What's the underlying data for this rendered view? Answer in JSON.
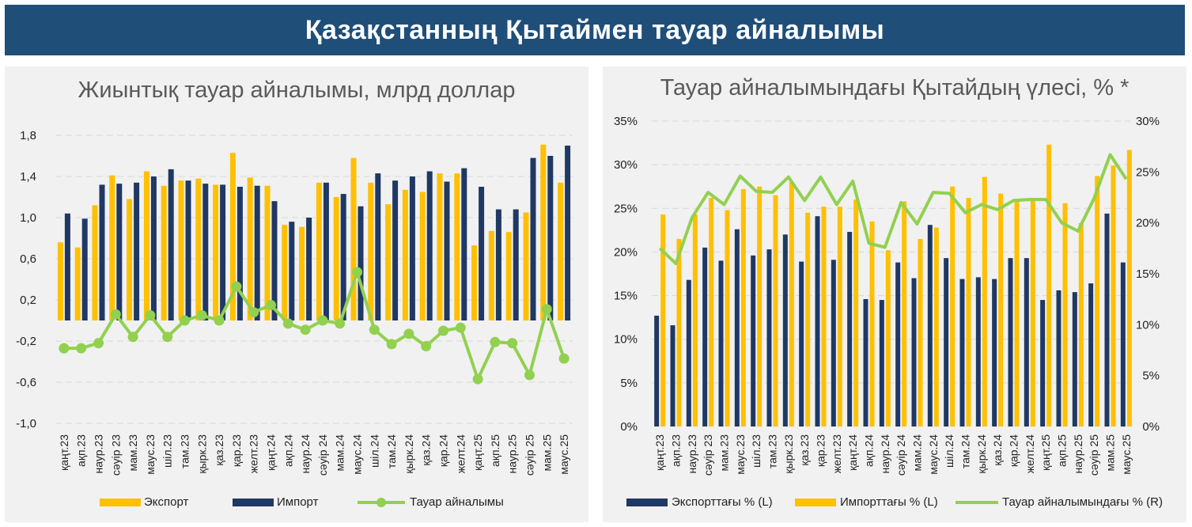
{
  "header": {
    "title": "Қазақстанның Қытаймен тауар айналымы"
  },
  "colors": {
    "banner": "#1f4e79",
    "export": "#ffc000",
    "import": "#1f3864",
    "turnover": "#92d050",
    "panel_bg": "#f1f1f1",
    "grid": "#d9d9d9"
  },
  "chart_data": [
    {
      "type": "bar",
      "title": "Жиынтық тауар айналымы, млрд доллар",
      "categories": [
        "қаңт.23",
        "ақп.23",
        "наур.23",
        "сәуір 23",
        "мам.23",
        "мауc.23",
        "шіл.23",
        "там.23",
        "қырк.23",
        "қаз.23",
        "қар.23",
        "желт.23",
        "қаңт.24",
        "ақп.24",
        "наур.24",
        "сәуір 24",
        "мам.24",
        "мауc.24",
        "шіл.24",
        "там.24",
        "қырк.24",
        "қаз.24",
        "қар.24",
        "желт.24",
        "қаңт.25",
        "ақп.25",
        "наур.25",
        "сәуір 25",
        "мам.25",
        "мауc.25"
      ],
      "series": [
        {
          "name": "Экспорт",
          "kind": "bar",
          "values": [
            0.76,
            0.71,
            1.12,
            1.41,
            1.18,
            1.45,
            1.31,
            1.36,
            1.38,
            1.32,
            1.63,
            1.39,
            1.31,
            0.93,
            0.91,
            1.34,
            1.2,
            1.58,
            1.34,
            1.13,
            1.27,
            1.25,
            1.43,
            1.43,
            0.73,
            0.87,
            0.86,
            1.05,
            1.71,
            1.34
          ]
        },
        {
          "name": "Импорт",
          "kind": "bar",
          "values": [
            1.04,
            0.99,
            1.32,
            1.33,
            1.34,
            1.4,
            1.47,
            1.36,
            1.33,
            1.32,
            1.3,
            1.31,
            1.16,
            0.96,
            1.0,
            1.34,
            1.23,
            1.11,
            1.43,
            1.36,
            1.4,
            1.45,
            1.35,
            1.48,
            1.3,
            1.08,
            1.08,
            1.58,
            1.6,
            1.7
          ]
        },
        {
          "name": "Тауар айналымы",
          "kind": "line",
          "values": [
            -0.27,
            -0.27,
            -0.22,
            0.06,
            -0.16,
            0.05,
            -0.16,
            0.0,
            0.05,
            0.0,
            0.33,
            0.08,
            0.15,
            -0.03,
            -0.09,
            0.0,
            -0.03,
            0.47,
            -0.09,
            -0.23,
            -0.13,
            -0.25,
            -0.1,
            -0.07,
            -0.57,
            -0.21,
            -0.22,
            -0.53,
            0.11,
            -0.37
          ]
        }
      ],
      "y_ticks": [
        "1,8",
        "1,4",
        "1,0",
        "0,6",
        "0,2",
        "-0,2",
        "-0,6",
        "-1,0"
      ],
      "ylim": [
        -1.0,
        1.8
      ],
      "grid": true,
      "legend_position": "bottom"
    },
    {
      "type": "bar",
      "title": "Тауар айналымындағы Қытайдың үлесі, % *",
      "categories": [
        "қаңт.23",
        "ақп.23",
        "наур.23",
        "сәуір 23",
        "мам.23",
        "мауc.23",
        "шіл.23",
        "там.23",
        "қырк.23",
        "қаз.23",
        "қар.23",
        "желт.23",
        "қаңт.24",
        "ақп.24",
        "наур.24",
        "сәуір 24",
        "мам.24",
        "мауc.24",
        "шіл.24",
        "там.24",
        "қырк.24",
        "қаз.24",
        "қар.24",
        "желт.24",
        "қаңт.25",
        "ақп.25",
        "наур.25",
        "сәуір 25",
        "мам.25",
        "мауc.25"
      ],
      "series": [
        {
          "name": "Экспорттағы % (L)",
          "kind": "bar",
          "axis": "left",
          "values": [
            12.7,
            11.6,
            16.8,
            20.5,
            19.0,
            22.6,
            19.6,
            20.3,
            22.0,
            18.9,
            24.1,
            19.1,
            22.3,
            14.6,
            14.5,
            18.8,
            17.0,
            23.1,
            19.3,
            16.9,
            17.1,
            16.9,
            19.3,
            19.3,
            14.5,
            15.6,
            15.4,
            16.4,
            24.4,
            18.8
          ]
        },
        {
          "name": "Импорттағы % (L)",
          "kind": "bar",
          "axis": "left",
          "values": [
            24.3,
            21.5,
            24.3,
            26.2,
            24.8,
            27.2,
            27.5,
            26.5,
            28.0,
            24.5,
            25.2,
            25.2,
            26.0,
            23.5,
            20.2,
            25.8,
            21.5,
            22.8,
            27.5,
            26.2,
            28.6,
            26.7,
            25.8,
            26.0,
            32.3,
            25.6,
            23.3,
            28.7,
            29.9,
            31.7
          ]
        },
        {
          "name": "Тауар айналымындағы % (R)",
          "kind": "line",
          "axis": "right",
          "values": [
            17.5,
            16.0,
            20.5,
            23.0,
            21.8,
            24.6,
            23.1,
            23.0,
            24.5,
            22.2,
            24.5,
            21.8,
            24.1,
            18.0,
            17.6,
            22.0,
            19.9,
            23.0,
            22.9,
            21.0,
            21.8,
            21.3,
            22.2,
            22.3,
            22.3,
            20.0,
            19.2,
            22.4,
            26.7,
            24.3
          ]
        }
      ],
      "y_ticks_left": [
        "35%",
        "30%",
        "25%",
        "20%",
        "15%",
        "10%",
        "5%",
        "0%"
      ],
      "y_ticks_right": [
        "30%",
        "25%",
        "20%",
        "15%",
        "10%",
        "5%",
        "0%"
      ],
      "ylim_left": [
        0,
        35
      ],
      "ylim_right": [
        0,
        30
      ],
      "grid": true,
      "legend_position": "bottom"
    }
  ]
}
